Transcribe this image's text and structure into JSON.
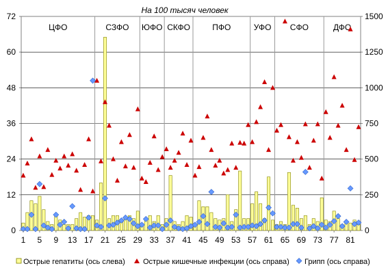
{
  "chart_data": {
    "type": "bar",
    "title": "На 100 тысяч человек",
    "x": [
      1,
      2,
      3,
      4,
      5,
      6,
      7,
      8,
      9,
      10,
      11,
      12,
      13,
      14,
      15,
      16,
      17,
      18,
      19,
      20,
      21,
      22,
      23,
      24,
      25,
      26,
      27,
      28,
      29,
      30,
      31,
      32,
      33,
      34,
      35,
      36,
      37,
      38,
      39,
      40,
      41,
      42,
      43,
      44,
      45,
      46,
      47,
      48,
      49,
      50,
      51,
      52,
      53,
      54,
      55,
      56,
      57,
      58,
      59,
      60,
      61,
      62,
      63,
      64,
      65,
      66,
      67,
      68,
      69,
      70,
      71,
      72,
      73,
      74,
      75,
      76,
      77,
      78,
      79,
      80,
      81,
      82,
      83
    ],
    "x_tick_labels": [
      "1",
      "5",
      "9",
      "13",
      "17",
      "21",
      "25",
      "29",
      "33",
      "37",
      "41",
      "45",
      "49",
      "53",
      "57",
      "61",
      "65",
      "69",
      "73",
      "77",
      "81"
    ],
    "x_tick_values": [
      1,
      5,
      9,
      13,
      17,
      21,
      25,
      29,
      33,
      37,
      41,
      45,
      49,
      53,
      57,
      61,
      65,
      69,
      73,
      77,
      81
    ],
    "y_left": {
      "min": 0,
      "max": 72,
      "ticks": [
        "0",
        "12",
        "24",
        "36",
        "48",
        "60",
        "72"
      ]
    },
    "y_right": {
      "min": 0,
      "max": 1500,
      "ticks": [
        "0",
        "250",
        "500",
        "750",
        "1000",
        "1250",
        "1500"
      ]
    },
    "grid": "horizontal",
    "regions": [
      {
        "label": "ЦФО",
        "start": 1,
        "end": 18
      },
      {
        "label": "СЗФО",
        "start": 19,
        "end": 29
      },
      {
        "label": "ЮФО",
        "start": 30,
        "end": 35
      },
      {
        "label": "СКФО",
        "start": 36,
        "end": 42
      },
      {
        "label": "ПФО",
        "start": 43,
        "end": 56
      },
      {
        "label": "УФО",
        "start": 57,
        "end": 62
      },
      {
        "label": "СФО",
        "start": 63,
        "end": 74
      },
      {
        "label": "ДФО",
        "start": 75,
        "end": 83
      }
    ],
    "legend_position": "bottom",
    "series": [
      {
        "name": "Острые гепатиты (ось слева)",
        "type": "bar",
        "axis": "left",
        "color": "#ffff99",
        "values": [
          2.5,
          6,
          10,
          9,
          11.5,
          7,
          3,
          2,
          5,
          3.5,
          2,
          2,
          2,
          4,
          6,
          4.5,
          5,
          5,
          3.5,
          16,
          65,
          4,
          5,
          5,
          3,
          4,
          5,
          4,
          6.5,
          2,
          3.5,
          5,
          3,
          5,
          2,
          4,
          18.5,
          3,
          2,
          3,
          5,
          4.5,
          2,
          10,
          8,
          8,
          6,
          4,
          3.5,
          4,
          12,
          3,
          7,
          20,
          4,
          4,
          9,
          13,
          9,
          4,
          18,
          3.5,
          2,
          3,
          2,
          19.5,
          8.5,
          7.5,
          4,
          5,
          2,
          4,
          3,
          11,
          3.5,
          3,
          6.5,
          4,
          2,
          3,
          2.5,
          3.5,
          2
        ]
      },
      {
        "name": "Острые кишечные инфекции (ось справа)",
        "type": "scatter",
        "marker": "triangle",
        "axis": "right",
        "color": "#cc0000",
        "values": [
          385,
          470,
          640,
          300,
          520,
          305,
          565,
          390,
          490,
          435,
          520,
          455,
          535,
          420,
          285,
          460,
          640,
          275,
          1050,
          485,
          900,
          735,
          500,
          350,
          620,
          450,
          670,
          440,
          850,
          365,
          340,
          475,
          660,
          425,
          515,
          570,
          440,
          490,
          545,
          680,
          460,
          630,
          385,
          445,
          650,
          800,
          565,
          455,
          490,
          400,
          425,
          610,
          440,
          615,
          610,
          740,
          620,
          760,
          865,
          1040,
          565,
          1000,
          700,
          740,
          1465,
          655,
          490,
          620,
          510,
          745,
          440,
          630,
          745,
          365,
          830,
          650,
          1075,
          735,
          875,
          565,
          1410,
          495,
          725
        ]
      },
      {
        "name": "Грипп (ось справа)",
        "type": "scatter",
        "marker": "diamond",
        "axis": "right",
        "color": "#6699ff",
        "values": [
          10,
          10,
          110,
          10,
          325,
          35,
          20,
          10,
          110,
          40,
          60,
          15,
          170,
          15,
          10,
          10,
          90,
          1050,
          35,
          25,
          225,
          35,
          40,
          55,
          70,
          90,
          80,
          50,
          30,
          40,
          80,
          20,
          35,
          35,
          10,
          40,
          70,
          25,
          15,
          10,
          15,
          30,
          40,
          60,
          100,
          45,
          270,
          25,
          20,
          50,
          20,
          25,
          110,
          20,
          25,
          25,
          35,
          30,
          45,
          70,
          160,
          120,
          25,
          25,
          20,
          20,
          45,
          45,
          20,
          410,
          15,
          30,
          15,
          40,
          20,
          40,
          65,
          100,
          30,
          60,
          295,
          45,
          55
        ]
      }
    ]
  }
}
